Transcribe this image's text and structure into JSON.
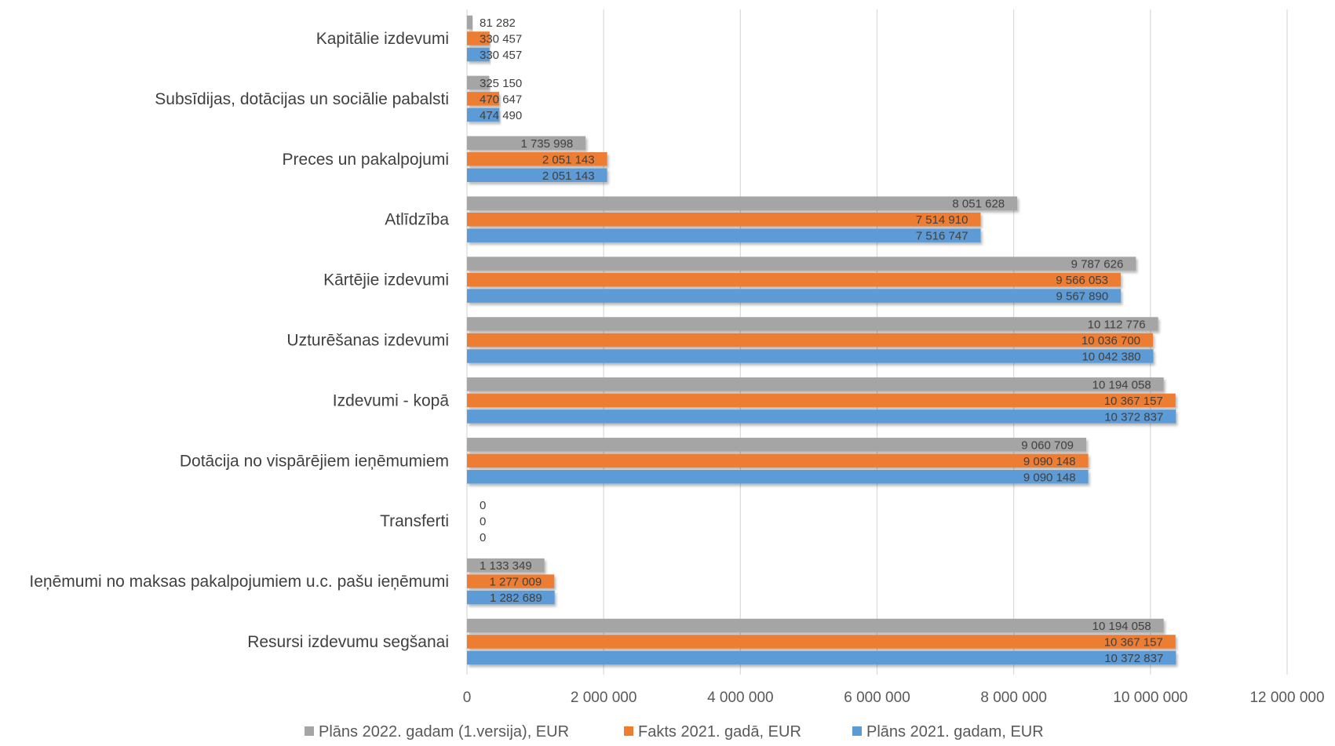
{
  "chart_data": {
    "type": "bar",
    "orientation": "horizontal",
    "categories": [
      "Kapitālie izdevumi",
      "Subsīdijas, dotācijas un sociālie pabalsti",
      "Preces un pakalpojumi",
      "Atlīdzība",
      "Kārtējie izdevumi",
      "Uzturēšanas izdevumi",
      "Izdevumi - kopā",
      "Dotācija no vispārējiem ieņēmumiem",
      "Transferti",
      "Ieņēmumi no maksas pakalpojumiem u.c. pašu ieņēmumi",
      "Resursi izdevumu segšanai"
    ],
    "series": [
      {
        "name": "Plāns 2022. gadam (1.versija), EUR",
        "color": "#a5a5a5",
        "values": [
          81282,
          325150,
          1735998,
          8051628,
          9787626,
          10112776,
          10194058,
          9060709,
          0,
          1133349,
          10194058
        ],
        "labels": [
          "81 282",
          "325 150",
          "1 735 998",
          "8 051 628",
          "9 787 626",
          "10 112 776",
          "10 194 058",
          "9 060 709",
          "0",
          "1 133 349",
          "10 194 058"
        ]
      },
      {
        "name": "Fakts 2021. gadā, EUR",
        "color": "#ed7d31",
        "values": [
          330457,
          470647,
          2051143,
          7514910,
          9566053,
          10036700,
          10367157,
          9090148,
          0,
          1277009,
          10367157
        ],
        "labels": [
          "330 457",
          "470 647",
          "2 051 143",
          "7 514 910",
          "9 566 053",
          "10 036 700",
          "10 367 157",
          "9 090 148",
          "0",
          "1 277 009",
          "10 367 157"
        ]
      },
      {
        "name": "Plāns 2021. gadam, EUR",
        "color": "#5b9bd5",
        "values": [
          330457,
          474490,
          2051143,
          7516747,
          9567890,
          10042380,
          10372837,
          9090148,
          0,
          1282689,
          10372837
        ],
        "labels": [
          "330 457",
          "474 490",
          "2 051 143",
          "7 516 747",
          "9 567 890",
          "10 042 380",
          "10 372 837",
          "9 090 148",
          "0",
          "1 282 689",
          "10 372 837"
        ]
      }
    ],
    "x_ticks": [
      0,
      2000000,
      4000000,
      6000000,
      8000000,
      10000000,
      12000000
    ],
    "x_tick_labels": [
      "0",
      "2 000 000",
      "4 000 000",
      "6 000 000",
      "8 000 000",
      "10 000 000",
      "12 000 000"
    ],
    "xlim": [
      0,
      12000000
    ],
    "grid": "vertical",
    "legend_position": "bottom"
  }
}
